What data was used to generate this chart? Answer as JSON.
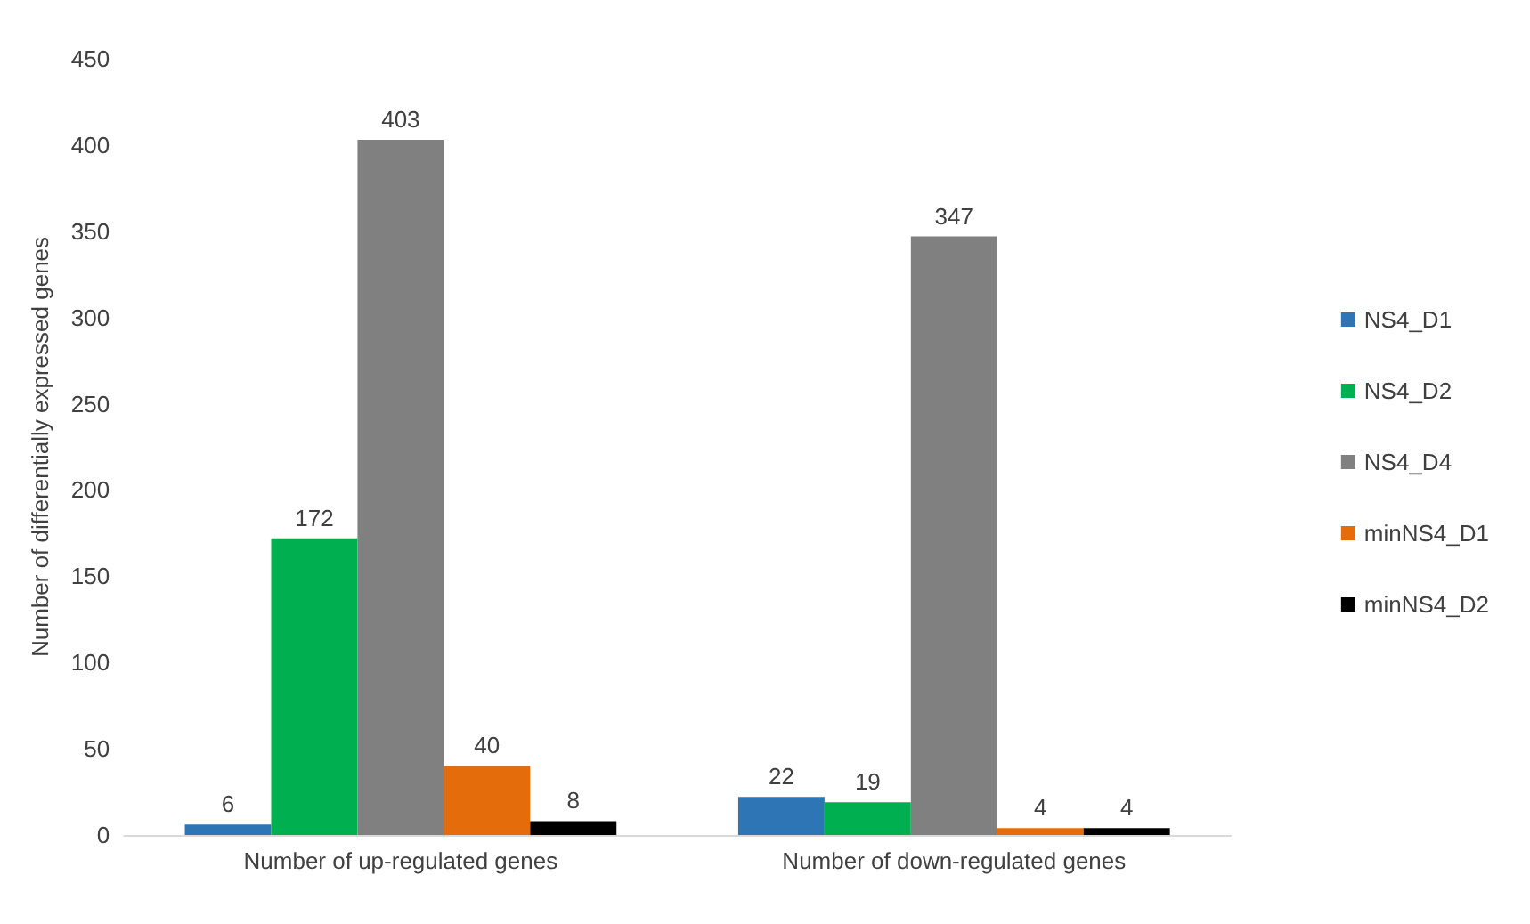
{
  "chart_data": {
    "type": "bar",
    "ylabel": "Number of differentially expressed genes",
    "categories": [
      "Number of up-regulated genes",
      "Number of down-regulated genes"
    ],
    "series": [
      {
        "name": "NS4_D1",
        "color": "#2e75b6",
        "values": [
          6,
          22
        ]
      },
      {
        "name": "NS4_D2",
        "color": "#00b050",
        "values": [
          172,
          19
        ]
      },
      {
        "name": "NS4_D4",
        "color": "#808080",
        "values": [
          403,
          347
        ]
      },
      {
        "name": "minNS4_D1",
        "color": "#e46c0a",
        "values": [
          40,
          4
        ]
      },
      {
        "name": "minNS4_D2",
        "color": "#000000",
        "values": [
          8,
          4
        ]
      }
    ],
    "ylim": [
      0,
      450
    ],
    "yticks": [
      0,
      50,
      100,
      150,
      200,
      250,
      300,
      350,
      400,
      450
    ],
    "grid": false,
    "legend": "right",
    "data_labels": true
  }
}
